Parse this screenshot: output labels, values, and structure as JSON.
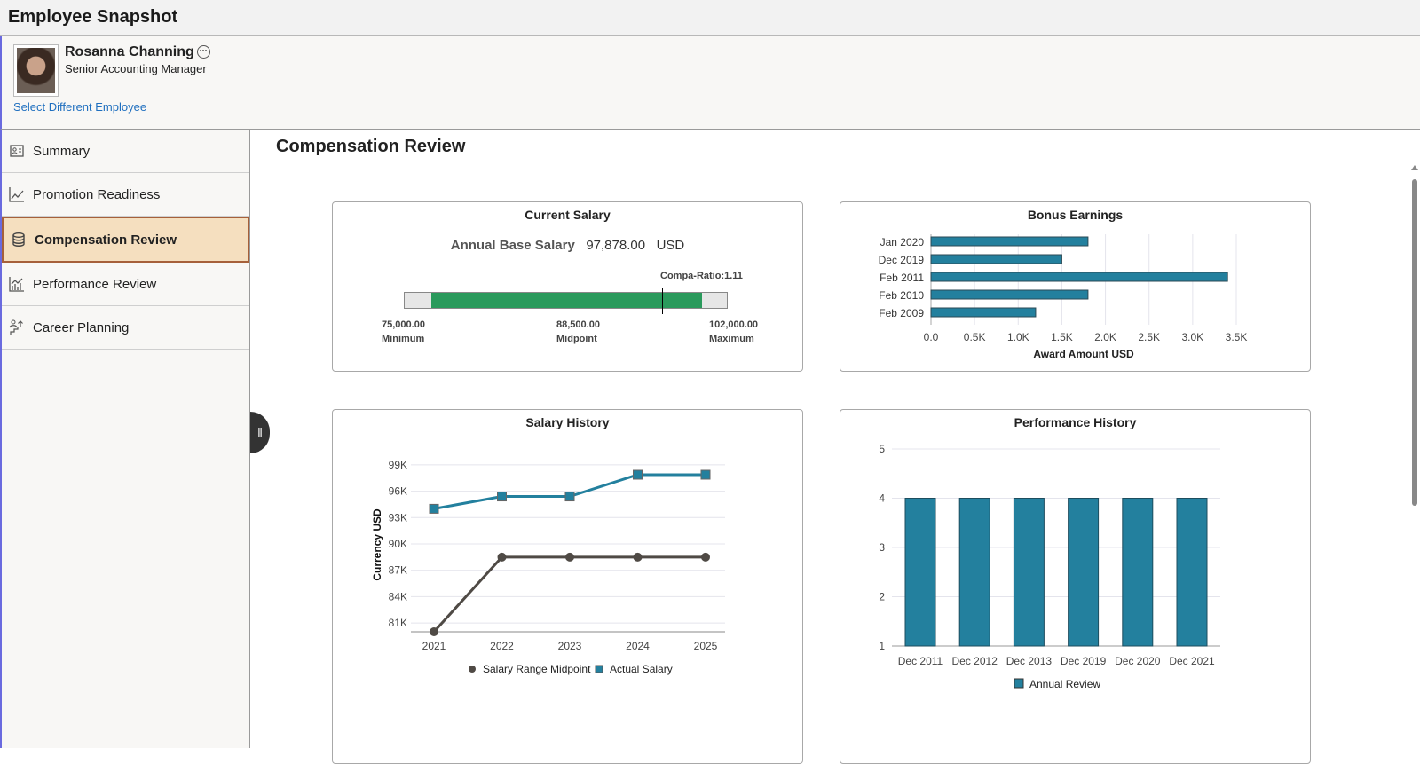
{
  "header": {
    "title": "Employee Snapshot"
  },
  "employee": {
    "name": "Rosanna Channing",
    "job_title": "Senior Accounting Manager",
    "select_link": "Select Different Employee",
    "more_icon": "ellipsis-circle-icon"
  },
  "sidebar": {
    "items": [
      {
        "label": "Summary",
        "icon": "id-card-icon"
      },
      {
        "label": "Promotion Readiness",
        "icon": "line-chart-icon"
      },
      {
        "label": "Compensation Review",
        "icon": "database-icon",
        "active": true
      },
      {
        "label": "Performance Review",
        "icon": "bar-chart-icon"
      },
      {
        "label": "Career Planning",
        "icon": "career-steps-icon"
      }
    ]
  },
  "main": {
    "title": "Compensation Review"
  },
  "current_salary": {
    "title": "Current Salary",
    "label": "Annual Base Salary",
    "value": "97,878.00",
    "currency": "USD",
    "compa_ratio": "Compa-Ratio:1.11",
    "min_value": "75,000.00",
    "min_label": "Minimum",
    "mid_value": "88,500.00",
    "mid_label": "Midpoint",
    "max_value": "102,000.00",
    "max_label": "Maximum",
    "range": [
      75000,
      102000
    ],
    "salary": 97878,
    "fill_color": "#2a9a5c"
  },
  "chart_data": [
    {
      "type": "bar",
      "orientation": "horizontal",
      "title": "Bonus Earnings",
      "categories": [
        "Jan 2020",
        "Dec 2019",
        "Feb 2011",
        "Feb 2010",
        "Feb 2009"
      ],
      "values": [
        1800,
        1500,
        3400,
        1800,
        1200
      ],
      "xlabel": "Award Amount USD",
      "xlim": [
        0,
        3500
      ],
      "ticks": [
        "0.0",
        "0.5K",
        "1.0K",
        "1.5K",
        "2.0K",
        "2.5K",
        "3.0K",
        "3.5K"
      ],
      "grid": true,
      "color": "#23809e"
    },
    {
      "type": "line",
      "title": "Salary History",
      "x": [
        "2021",
        "2022",
        "2023",
        "2024",
        "2025"
      ],
      "ylabel": "Currency USD",
      "ylim": [
        80000,
        100000
      ],
      "yticks": [
        "81K",
        "84K",
        "87K",
        "90K",
        "93K",
        "96K",
        "99K"
      ],
      "grid": true,
      "legend": "bottom",
      "series": [
        {
          "name": "Salary Range Midpoint",
          "values": [
            80000,
            88500,
            88500,
            88500,
            88500
          ],
          "color": "#4f4a45",
          "marker": "circle"
        },
        {
          "name": "Actual Salary",
          "values": [
            94000,
            95400,
            95400,
            97878,
            97878
          ],
          "color": "#23809e",
          "marker": "square"
        }
      ]
    },
    {
      "type": "bar",
      "title": "Performance History",
      "categories": [
        "Dec 2011",
        "Dec 2012",
        "Dec 2013",
        "Dec 2019",
        "Dec 2020",
        "Dec 2021"
      ],
      "values": [
        4,
        4,
        4,
        4,
        4,
        4
      ],
      "ylim": [
        1,
        5
      ],
      "yticks": [
        "1",
        "2",
        "3",
        "4",
        "5"
      ],
      "grid": true,
      "legend": "bottom",
      "series_name": "Annual Review",
      "color": "#23809e"
    }
  ]
}
